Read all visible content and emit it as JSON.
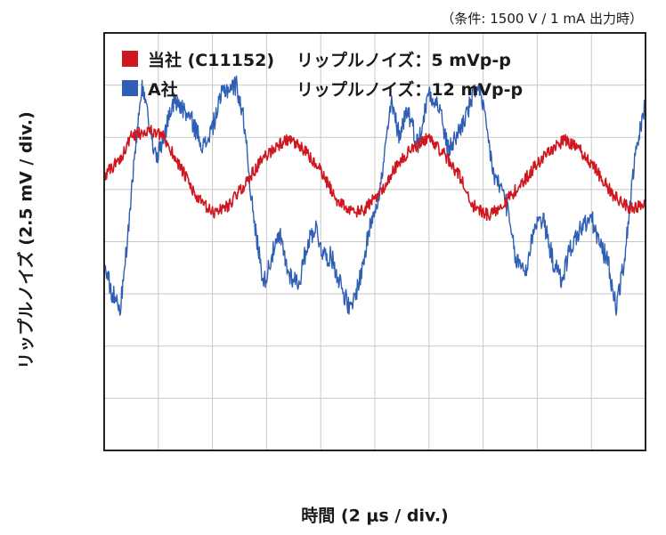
{
  "chart_data": {
    "type": "line",
    "condition_note": "（条件: 1500 V / 1 mA 出力時）",
    "xlabel": "時間 (2 μs / div.)",
    "ylabel": "リップルノイズ (2.5 mV / div.)",
    "grid": true,
    "x_divisions": 10,
    "y_divisions": 8,
    "legend_position": "top-left",
    "series": [
      {
        "name": "当社 (C11152)",
        "ripple_label": "リップルノイズ：5 mVp-p",
        "color": "#d0171f",
        "peak_to_peak_mV": 5,
        "x_div": [
          0,
          0.3,
          0.5,
          0.8,
          1.1,
          1.4,
          1.7,
          2.0,
          2.3,
          2.6,
          2.9,
          3.2,
          3.4,
          3.7,
          4.0,
          4.3,
          4.6,
          4.8,
          5.1,
          5.4,
          5.7,
          6.0,
          6.3,
          6.6,
          6.8,
          7.1,
          7.4,
          7.7,
          8.0,
          8.3,
          8.5,
          8.8,
          9.1,
          9.4,
          9.7,
          10.0
        ],
        "y_div": [
          1.25,
          1.6,
          2.0,
          2.15,
          2.0,
          1.45,
          0.85,
          0.55,
          0.7,
          1.1,
          1.55,
          1.85,
          1.95,
          1.75,
          1.35,
          0.8,
          0.55,
          0.6,
          0.95,
          1.45,
          1.8,
          2.0,
          1.65,
          1.2,
          0.7,
          0.5,
          0.75,
          1.1,
          1.5,
          1.8,
          1.95,
          1.75,
          1.35,
          0.9,
          0.65,
          0.7
        ]
      },
      {
        "name": "A社",
        "ripple_label": "リップルノイズ：12 mVp-p",
        "color": "#2f5fb5",
        "peak_to_peak_mV": 12,
        "x_div": [
          0,
          0.15,
          0.3,
          0.45,
          0.55,
          0.7,
          0.9,
          1.0,
          1.15,
          1.3,
          1.6,
          1.85,
          2.0,
          2.2,
          2.45,
          2.6,
          2.75,
          2.95,
          3.1,
          3.25,
          3.4,
          3.6,
          3.75,
          3.9,
          4.05,
          4.2,
          4.35,
          4.55,
          4.75,
          4.95,
          5.1,
          5.3,
          5.45,
          5.6,
          5.8,
          6.0,
          6.2,
          6.35,
          6.5,
          6.7,
          6.9,
          7.05,
          7.2,
          7.4,
          7.6,
          7.8,
          7.95,
          8.1,
          8.3,
          8.45,
          8.6,
          8.8,
          9.0,
          9.15,
          9.3,
          9.45,
          9.6,
          9.8,
          10.0
        ],
        "y_div": [
          -0.4,
          -1.0,
          -1.25,
          0.2,
          1.5,
          2.95,
          1.8,
          1.65,
          2.2,
          2.75,
          2.35,
          1.8,
          2.2,
          2.9,
          3.0,
          2.2,
          0.5,
          -0.8,
          -0.25,
          0.1,
          -0.6,
          -0.8,
          -0.05,
          0.3,
          -0.25,
          -0.3,
          -0.75,
          -1.35,
          -0.6,
          0.5,
          1.0,
          2.65,
          2.05,
          2.55,
          1.85,
          2.9,
          2.55,
          1.75,
          2.0,
          2.45,
          3.05,
          2.25,
          1.25,
          0.9,
          -0.35,
          -0.55,
          0.35,
          0.45,
          -0.4,
          -0.75,
          -0.15,
          0.25,
          0.45,
          -0.05,
          -0.35,
          -1.25,
          -0.45,
          1.55,
          2.65
        ]
      }
    ]
  }
}
